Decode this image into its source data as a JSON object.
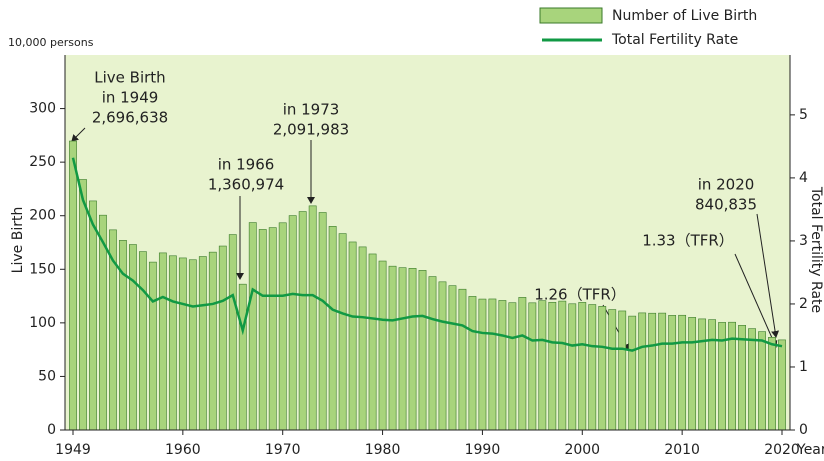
{
  "chart_data": {
    "type": "bar_line",
    "y_unit": "10,000 persons",
    "ylabel": "Live Birth",
    "y2label": "Total Fertility Rate",
    "xlabel": "Year",
    "x": [
      1949,
      1950,
      1951,
      1952,
      1953,
      1954,
      1955,
      1956,
      1957,
      1958,
      1959,
      1960,
      1961,
      1962,
      1963,
      1964,
      1965,
      1966,
      1967,
      1968,
      1969,
      1970,
      1971,
      1972,
      1973,
      1974,
      1975,
      1976,
      1977,
      1978,
      1979,
      1980,
      1981,
      1982,
      1983,
      1984,
      1985,
      1986,
      1987,
      1988,
      1989,
      1990,
      1991,
      1992,
      1993,
      1994,
      1995,
      1996,
      1997,
      1998,
      1999,
      2000,
      2001,
      2002,
      2003,
      2004,
      2005,
      2006,
      2007,
      2008,
      2009,
      2010,
      2011,
      2012,
      2013,
      2014,
      2015,
      2016,
      2017,
      2018,
      2019,
      2020
    ],
    "series": [
      {
        "name": "Number of Live Birth",
        "color": "#a8d47c",
        "values": [
          269.7,
          233.8,
          213.8,
          200.5,
          186.8,
          177.0,
          173.1,
          166.5,
          156.7,
          165.3,
          162.6,
          160.6,
          158.9,
          161.9,
          166.0,
          171.7,
          182.4,
          136.1,
          193.6,
          187.2,
          188.9,
          193.4,
          200.1,
          203.9,
          209.2,
          203.0,
          190.1,
          183.3,
          175.5,
          170.9,
          164.3,
          157.7,
          152.9,
          151.5,
          150.9,
          149.0,
          143.2,
          138.3,
          134.7,
          131.4,
          124.7,
          122.2,
          122.3,
          120.9,
          118.8,
          123.8,
          118.7,
          120.7,
          119.2,
          120.3,
          117.8,
          119.1,
          117.1,
          115.4,
          112.4,
          111.1,
          106.3,
          109.3,
          109.0,
          109.1,
          107.0,
          107.1,
          105.1,
          103.7,
          103.0,
          100.4,
          100.6,
          97.7,
          94.6,
          91.8,
          86.5,
          84.1
        ]
      },
      {
        "name": "Total Fertility Rate",
        "color": "#119944",
        "axis": "y2",
        "values": [
          4.32,
          3.65,
          3.26,
          2.98,
          2.69,
          2.48,
          2.37,
          2.22,
          2.04,
          2.11,
          2.04,
          2.0,
          1.96,
          1.98,
          2.0,
          2.05,
          2.14,
          1.58,
          2.23,
          2.13,
          2.13,
          2.13,
          2.16,
          2.14,
          2.14,
          2.05,
          1.91,
          1.85,
          1.8,
          1.79,
          1.77,
          1.75,
          1.74,
          1.77,
          1.8,
          1.81,
          1.76,
          1.72,
          1.69,
          1.66,
          1.57,
          1.54,
          1.53,
          1.5,
          1.46,
          1.5,
          1.42,
          1.43,
          1.39,
          1.38,
          1.34,
          1.36,
          1.33,
          1.32,
          1.29,
          1.29,
          1.26,
          1.32,
          1.34,
          1.37,
          1.37,
          1.39,
          1.39,
          1.41,
          1.43,
          1.42,
          1.45,
          1.44,
          1.43,
          1.42,
          1.36,
          1.33
        ]
      }
    ],
    "xlim": [
      1948.2,
      2020.8
    ],
    "xticks": [
      1949,
      1960,
      1970,
      1980,
      1990,
      2000,
      2010,
      2020
    ],
    "ylim": [
      0,
      350
    ],
    "yticks": [
      0,
      50,
      100,
      150,
      200,
      250,
      300
    ],
    "y2lim": [
      0,
      5.95
    ],
    "y2ticks": [
      0,
      1,
      2,
      3,
      4,
      5
    ],
    "annotations": [
      {
        "lines": [
          "Live Birth",
          "in 1949",
          "2,696,638"
        ]
      },
      {
        "lines": [
          "in 1966",
          "1,360,974"
        ]
      },
      {
        "lines": [
          "in 1973",
          "2,091,983"
        ]
      },
      {
        "lines": [
          "1.26（TFR）"
        ]
      },
      {
        "lines": [
          "in 2020",
          "840,835"
        ]
      },
      {
        "lines": [
          "1.33（TFR）"
        ]
      }
    ]
  }
}
